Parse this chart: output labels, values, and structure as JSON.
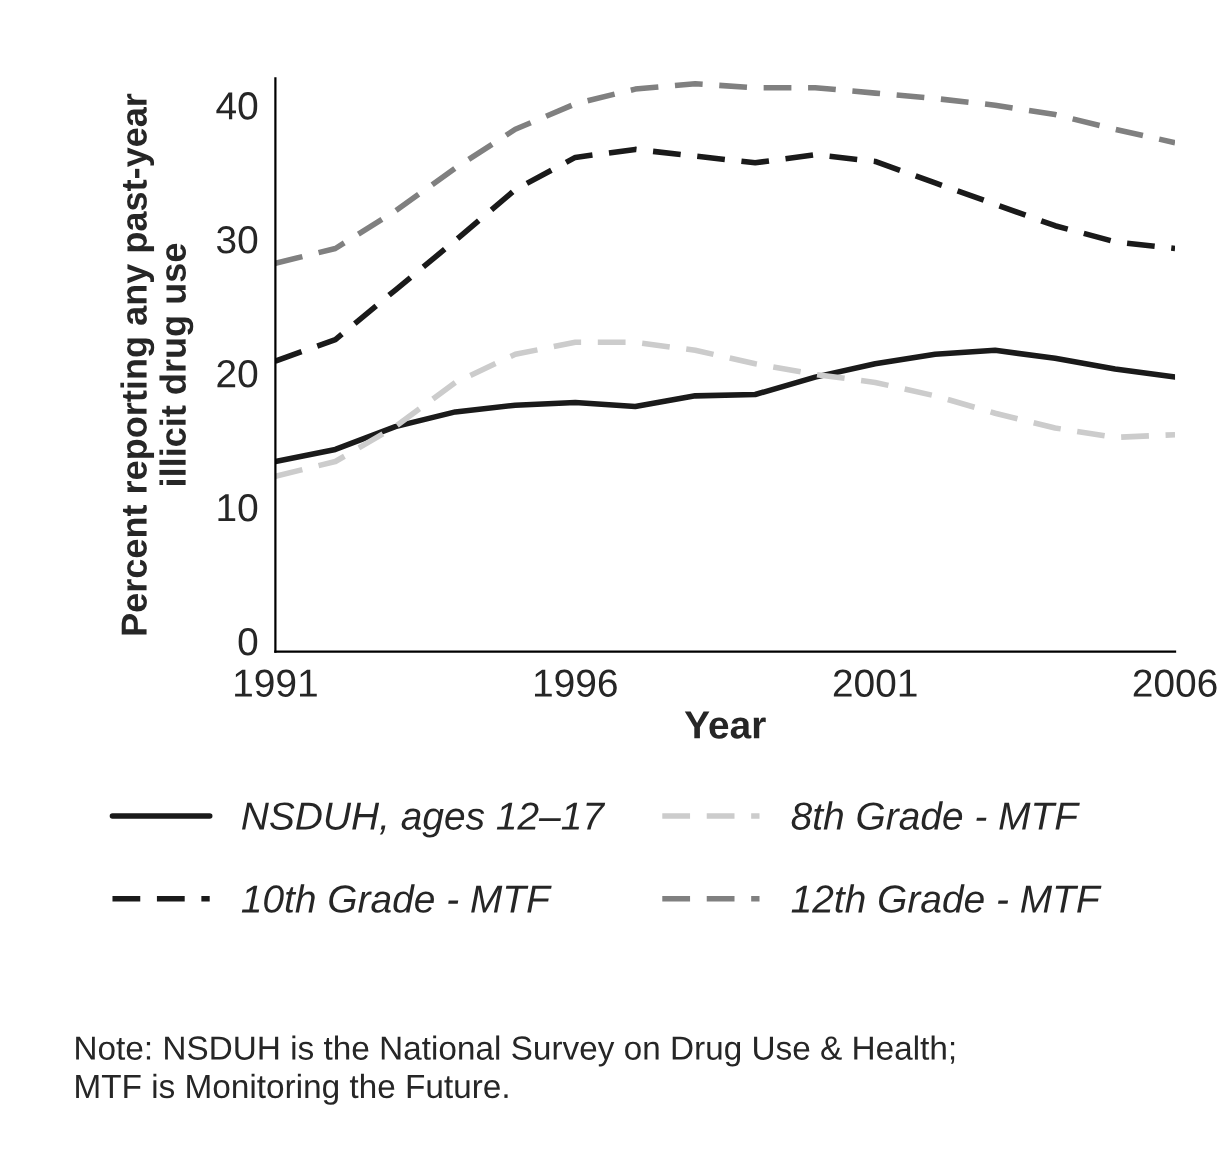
{
  "chart_data": {
    "type": "line",
    "xlabel": "Year",
    "ylabel": "Percent reporting any past-year\nillicit drug use",
    "x": [
      1991,
      1992,
      1993,
      1994,
      1995,
      1996,
      1997,
      1998,
      1999,
      2000,
      2001,
      2002,
      2003,
      2004,
      2005,
      2006
    ],
    "series": [
      {
        "name": "NSDUH, ages 12–17",
        "color": "#1a1a1a",
        "line_style": "solid",
        "values": [
          13.4,
          14.3,
          16.0,
          17.1,
          17.6,
          17.8,
          17.5,
          18.3,
          18.4,
          19.7,
          20.7,
          21.4,
          21.7,
          21.1,
          20.3,
          19.7
        ]
      },
      {
        "name": "8th Grade - MTF",
        "color": "#cccccc",
        "line_style": "dashed",
        "values": [
          12.3,
          13.4,
          16.0,
          19.3,
          21.4,
          22.3,
          22.3,
          21.7,
          20.7,
          19.9,
          19.3,
          18.3,
          17.0,
          15.9,
          15.2,
          15.4
        ]
      },
      {
        "name": "10th Grade - MTF",
        "color": "#1a1a1a",
        "line_style": "dashed",
        "values": [
          20.9,
          22.5,
          26.2,
          29.9,
          33.7,
          36.1,
          36.7,
          36.2,
          35.7,
          36.3,
          35.8,
          34.2,
          32.6,
          31.0,
          29.8,
          29.3
        ]
      },
      {
        "name": "12th Grade - MTF",
        "color": "#808080",
        "line_style": "dashed",
        "values": [
          28.2,
          29.3,
          32.1,
          35.3,
          38.2,
          40.1,
          41.2,
          41.6,
          41.3,
          41.3,
          40.9,
          40.5,
          40.0,
          39.3,
          38.2,
          37.2
        ]
      }
    ],
    "xlim": [
      1991,
      2006
    ],
    "xticks": [
      1991,
      1996,
      2001,
      2006
    ],
    "ylim": [
      -0.8,
      42
    ],
    "yticks": [
      0,
      10,
      20,
      30,
      40
    ],
    "grid": false,
    "legend": "bottom",
    "marker": "none",
    "annotations": [
      "Note: NSDUH is the National Survey on Drug Use & Health; MTF is Monitoring the Future."
    ]
  }
}
